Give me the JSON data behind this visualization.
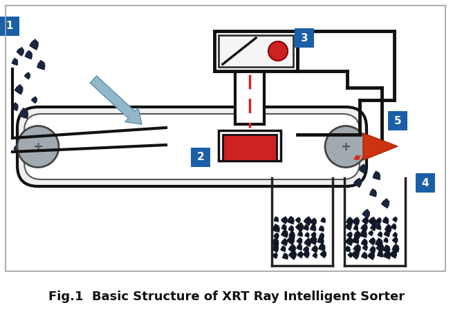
{
  "title": "Fig.1  Basic Structure of XRT Ray Intelligent Sorter",
  "title_fontsize": 13,
  "title_fontweight": "bold",
  "bg_color": "#ffffff",
  "label_bg": "#1a5fa8",
  "label_text": "#ffffff",
  "roller_fill": "#a0aab0",
  "xray_box_fill": "#cc2222",
  "xray_source_fill": "#cc2222",
  "dashed_line_color": "#dd2222",
  "ore_color": "#1a2540",
  "ore_edge": "#080f20",
  "ore_highlight": "#4a7090",
  "arrow_gray_fill": "#90b8c8",
  "arrow_gray_edge": "#6090a8",
  "tri_fill": "#cc3311",
  "tri_edge": "#aa2200",
  "container_color": "#222222",
  "belt_fill": "#f0f0f0",
  "belt_inner": "#ffffff"
}
